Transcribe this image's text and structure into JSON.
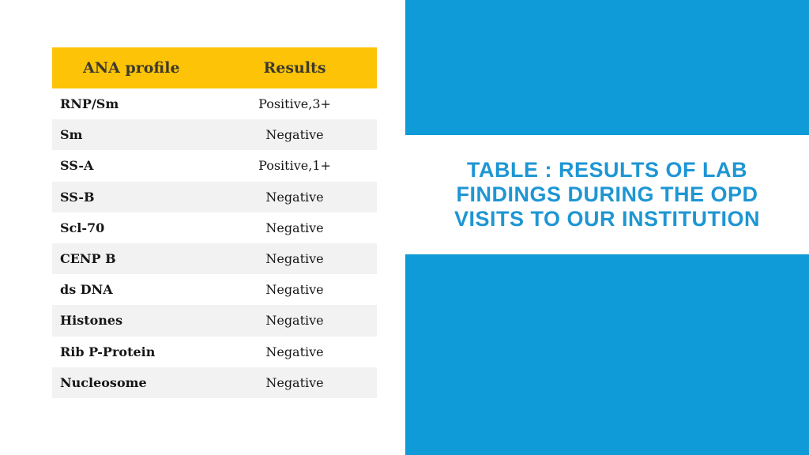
{
  "theme": {
    "accent_blue": "#0f9ad8",
    "title_blue": "#1e96d3",
    "header_yellow": "#fdc306",
    "row_stripe": "#f2f2f2"
  },
  "title": {
    "text": "TABLE : RESULTS OF LAB FINDINGS DURING THE OPD VISITS TO OUR INSTITUTION"
  },
  "table": {
    "columns": [
      {
        "label": "ANA profile"
      },
      {
        "label": "Results"
      }
    ],
    "rows": [
      {
        "label": "RNP/Sm",
        "value": "Positive,3+"
      },
      {
        "label": "Sm",
        "value": "Negative"
      },
      {
        "label": "SS-A",
        "value": "Positive,1+"
      },
      {
        "label": "SS-B",
        "value": "Negative"
      },
      {
        "label": "Scl-70",
        "value": "Negative"
      },
      {
        "label": "CENP B",
        "value": "Negative"
      },
      {
        "label": "ds DNA",
        "value": "Negative"
      },
      {
        "label": "Histones",
        "value": "Negative"
      },
      {
        "label": "Rib P-Protein",
        "value": "Negative"
      },
      {
        "label": "Nucleosome",
        "value": "Negative"
      }
    ]
  }
}
